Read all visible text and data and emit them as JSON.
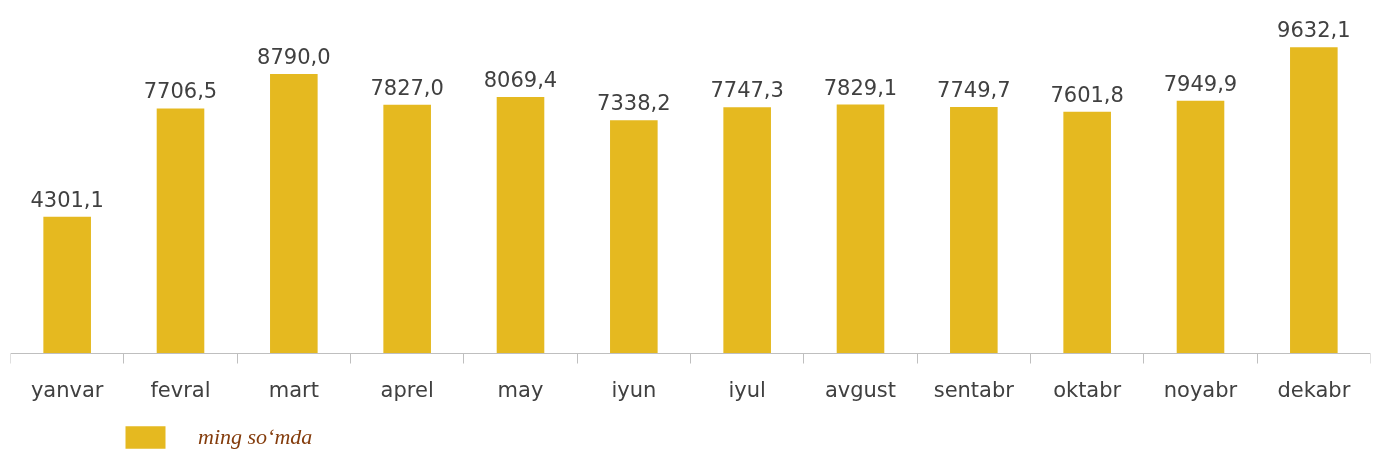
{
  "chart_data": {
    "type": "bar",
    "categories": [
      "yanvar",
      "fevral",
      "mart",
      "aprel",
      "may",
      "iyun",
      "iyul",
      "avgust",
      "sentabr",
      "oktabr",
      "noyabr",
      "dekabr"
    ],
    "series": [
      {
        "name": "ming so‘mda",
        "color": "#e5b920",
        "values": [
          4301.1,
          7706.5,
          8790.0,
          7827.0,
          8069.4,
          7338.2,
          7747.3,
          7829.1,
          7749.7,
          7601.8,
          7949.9,
          9632.1
        ],
        "value_labels": [
          "4301,1",
          "7706,5",
          "8790,0",
          "7827,0",
          "8069,4",
          "7338,2",
          "7747,3",
          "7829,1",
          "7749,7",
          "7601,8",
          "7949,9",
          "9632,1"
        ]
      }
    ],
    "legend": "bottom left"
  }
}
